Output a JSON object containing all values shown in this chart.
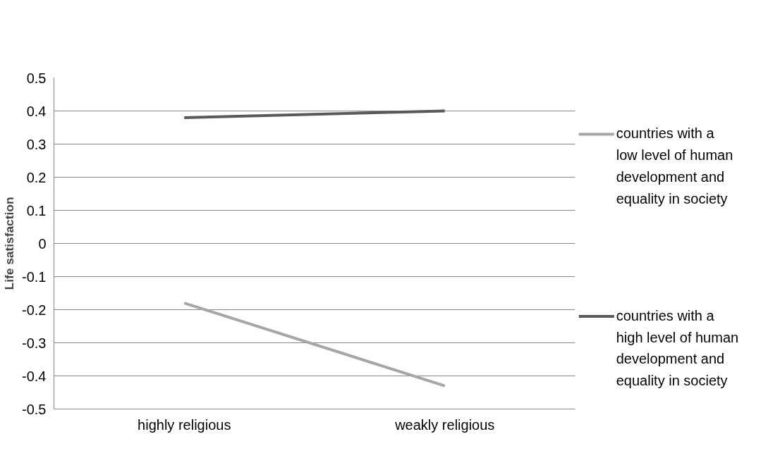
{
  "chart_data": {
    "type": "line",
    "ylabel": "Life satisfaction",
    "categories": [
      "highly religious",
      "weakly religious"
    ],
    "series": [
      {
        "name": "countries with a low level of human development and equality in society",
        "color": "#a6a6a6",
        "values": [
          -0.18,
          -0.43
        ]
      },
      {
        "name": "countries with a high level of human development and equality in society",
        "color": "#595959",
        "values": [
          0.38,
          0.4
        ]
      }
    ],
    "ylim": [
      -0.5,
      0.5
    ],
    "yticks": [
      -0.5,
      -0.4,
      -0.3,
      -0.2,
      -0.1,
      0,
      0.1,
      0.2,
      0.3,
      0.4,
      0.5
    ],
    "grid": "y",
    "legend": "right",
    "marker": "none",
    "line_style": "solid"
  }
}
